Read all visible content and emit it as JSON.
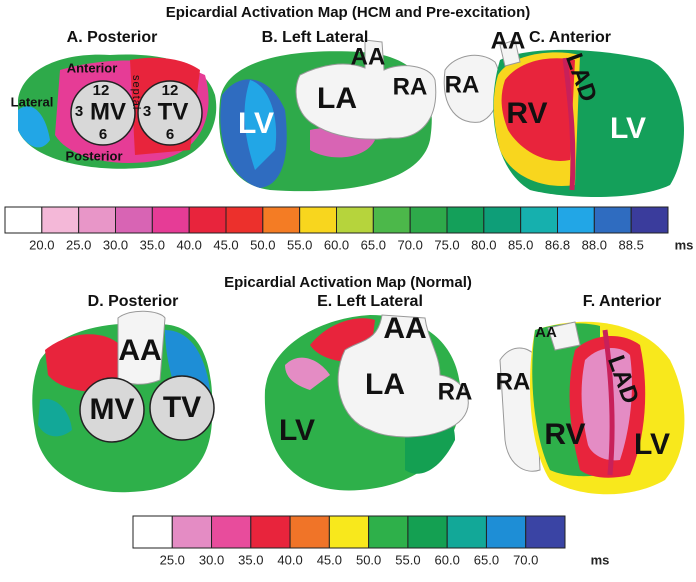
{
  "figure": {
    "panels": [
      {
        "title": "Epicardial Activation Map (HCM and Pre-excitation)",
        "views": [
          {
            "label": "A. Posterior",
            "texts": [
              "Anterior",
              "Lateral",
              "Posterior",
              "septal",
              "MV",
              "TV",
              "12",
              "3",
              "6",
              "12",
              "3",
              "6"
            ]
          },
          {
            "label": "B. Left Lateral",
            "texts": [
              "AA",
              "LA",
              "RA",
              "LV"
            ]
          },
          {
            "label": "C. Anterior",
            "texts": [
              "AA",
              "RA",
              "RV",
              "LAD",
              "LV"
            ]
          }
        ],
        "colorbar": {
          "colors": [
            "#ffffff",
            "#f4b8d8",
            "#e896c8",
            "#d864b4",
            "#e63c96",
            "#e8243c",
            "#ec302c",
            "#f47c24",
            "#f8d61e",
            "#b6d43c",
            "#4cb84a",
            "#2eaa4a",
            "#14a05a",
            "#0e9e78",
            "#16b0ae",
            "#22a6e6",
            "#2f6cc0",
            "#3a3c9c"
          ],
          "ticks": [
            "20.0",
            "25.0",
            "30.0",
            "35.0",
            "40.0",
            "45.0",
            "50.0",
            "55.0",
            "60.0",
            "65.0",
            "70.0",
            "75.0",
            "80.0",
            "85.0",
            "86.8",
            "88.0",
            "88.5"
          ],
          "unit": "ms"
        }
      },
      {
        "title": "Epicardial Activation Map (Normal)",
        "views": [
          {
            "label": "D. Posterior",
            "texts": [
              "AA",
              "MV",
              "TV"
            ]
          },
          {
            "label": "E. Left Lateral",
            "texts": [
              "AA",
              "LA",
              "RA",
              "LV"
            ]
          },
          {
            "label": "F. Anterior",
            "texts": [
              "AA",
              "RA",
              "LAD",
              "RV",
              "LV"
            ]
          }
        ],
        "colorbar": {
          "colors": [
            "#ffffff",
            "#e48cc4",
            "#e84c9c",
            "#e8243c",
            "#f07428",
            "#f8e81c",
            "#2eb04a",
            "#14a052",
            "#12a898",
            "#1e8ed6",
            "#3a44a4"
          ],
          "ticks": [
            "25.0",
            "30.0",
            "35.0",
            "40.0",
            "45.0",
            "50.0",
            "55.0",
            "60.0",
            "65.0",
            "70.0"
          ],
          "unit": "ms"
        }
      }
    ]
  }
}
